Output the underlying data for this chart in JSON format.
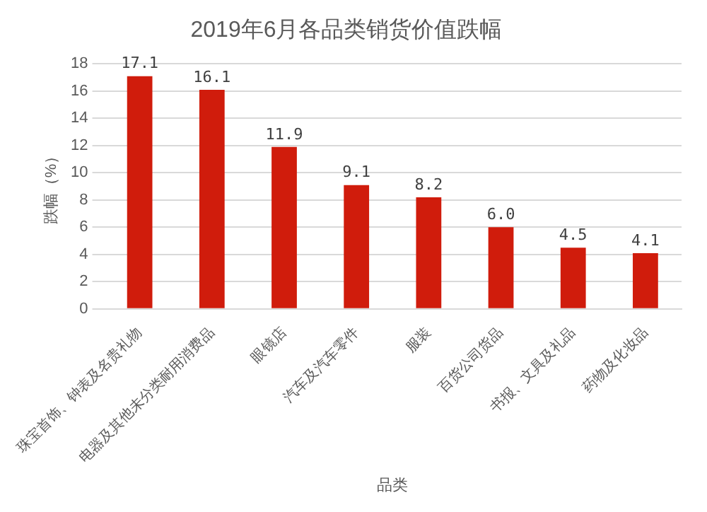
{
  "chart_data": {
    "type": "bar",
    "title": "2019年6月各品类销货价值跌幅",
    "xlabel": "品类",
    "ylabel": "跌幅（%）",
    "categories": [
      "珠宝首饰、钟表及名贵礼物",
      "电器及其他未分类耐用消费品",
      "眼镜店",
      "汽车及汽车零件",
      "服装",
      "百货公司货品",
      "书报、文具及礼品",
      "药物及化妆品"
    ],
    "values": [
      17.1,
      16.1,
      11.9,
      9.1,
      8.2,
      6.0,
      4.5,
      4.1
    ],
    "color": "#d01c0c",
    "value_labels": [
      "17.1",
      "16.1",
      "11.9",
      "9.1",
      "8.2",
      "6.0",
      "4.5",
      "4.1"
    ],
    "ylim": [
      0,
      18
    ],
    "yticks": [
      0,
      2,
      4,
      6,
      8,
      10,
      12,
      14,
      16,
      18
    ],
    "grid": "y",
    "legend": false
  }
}
